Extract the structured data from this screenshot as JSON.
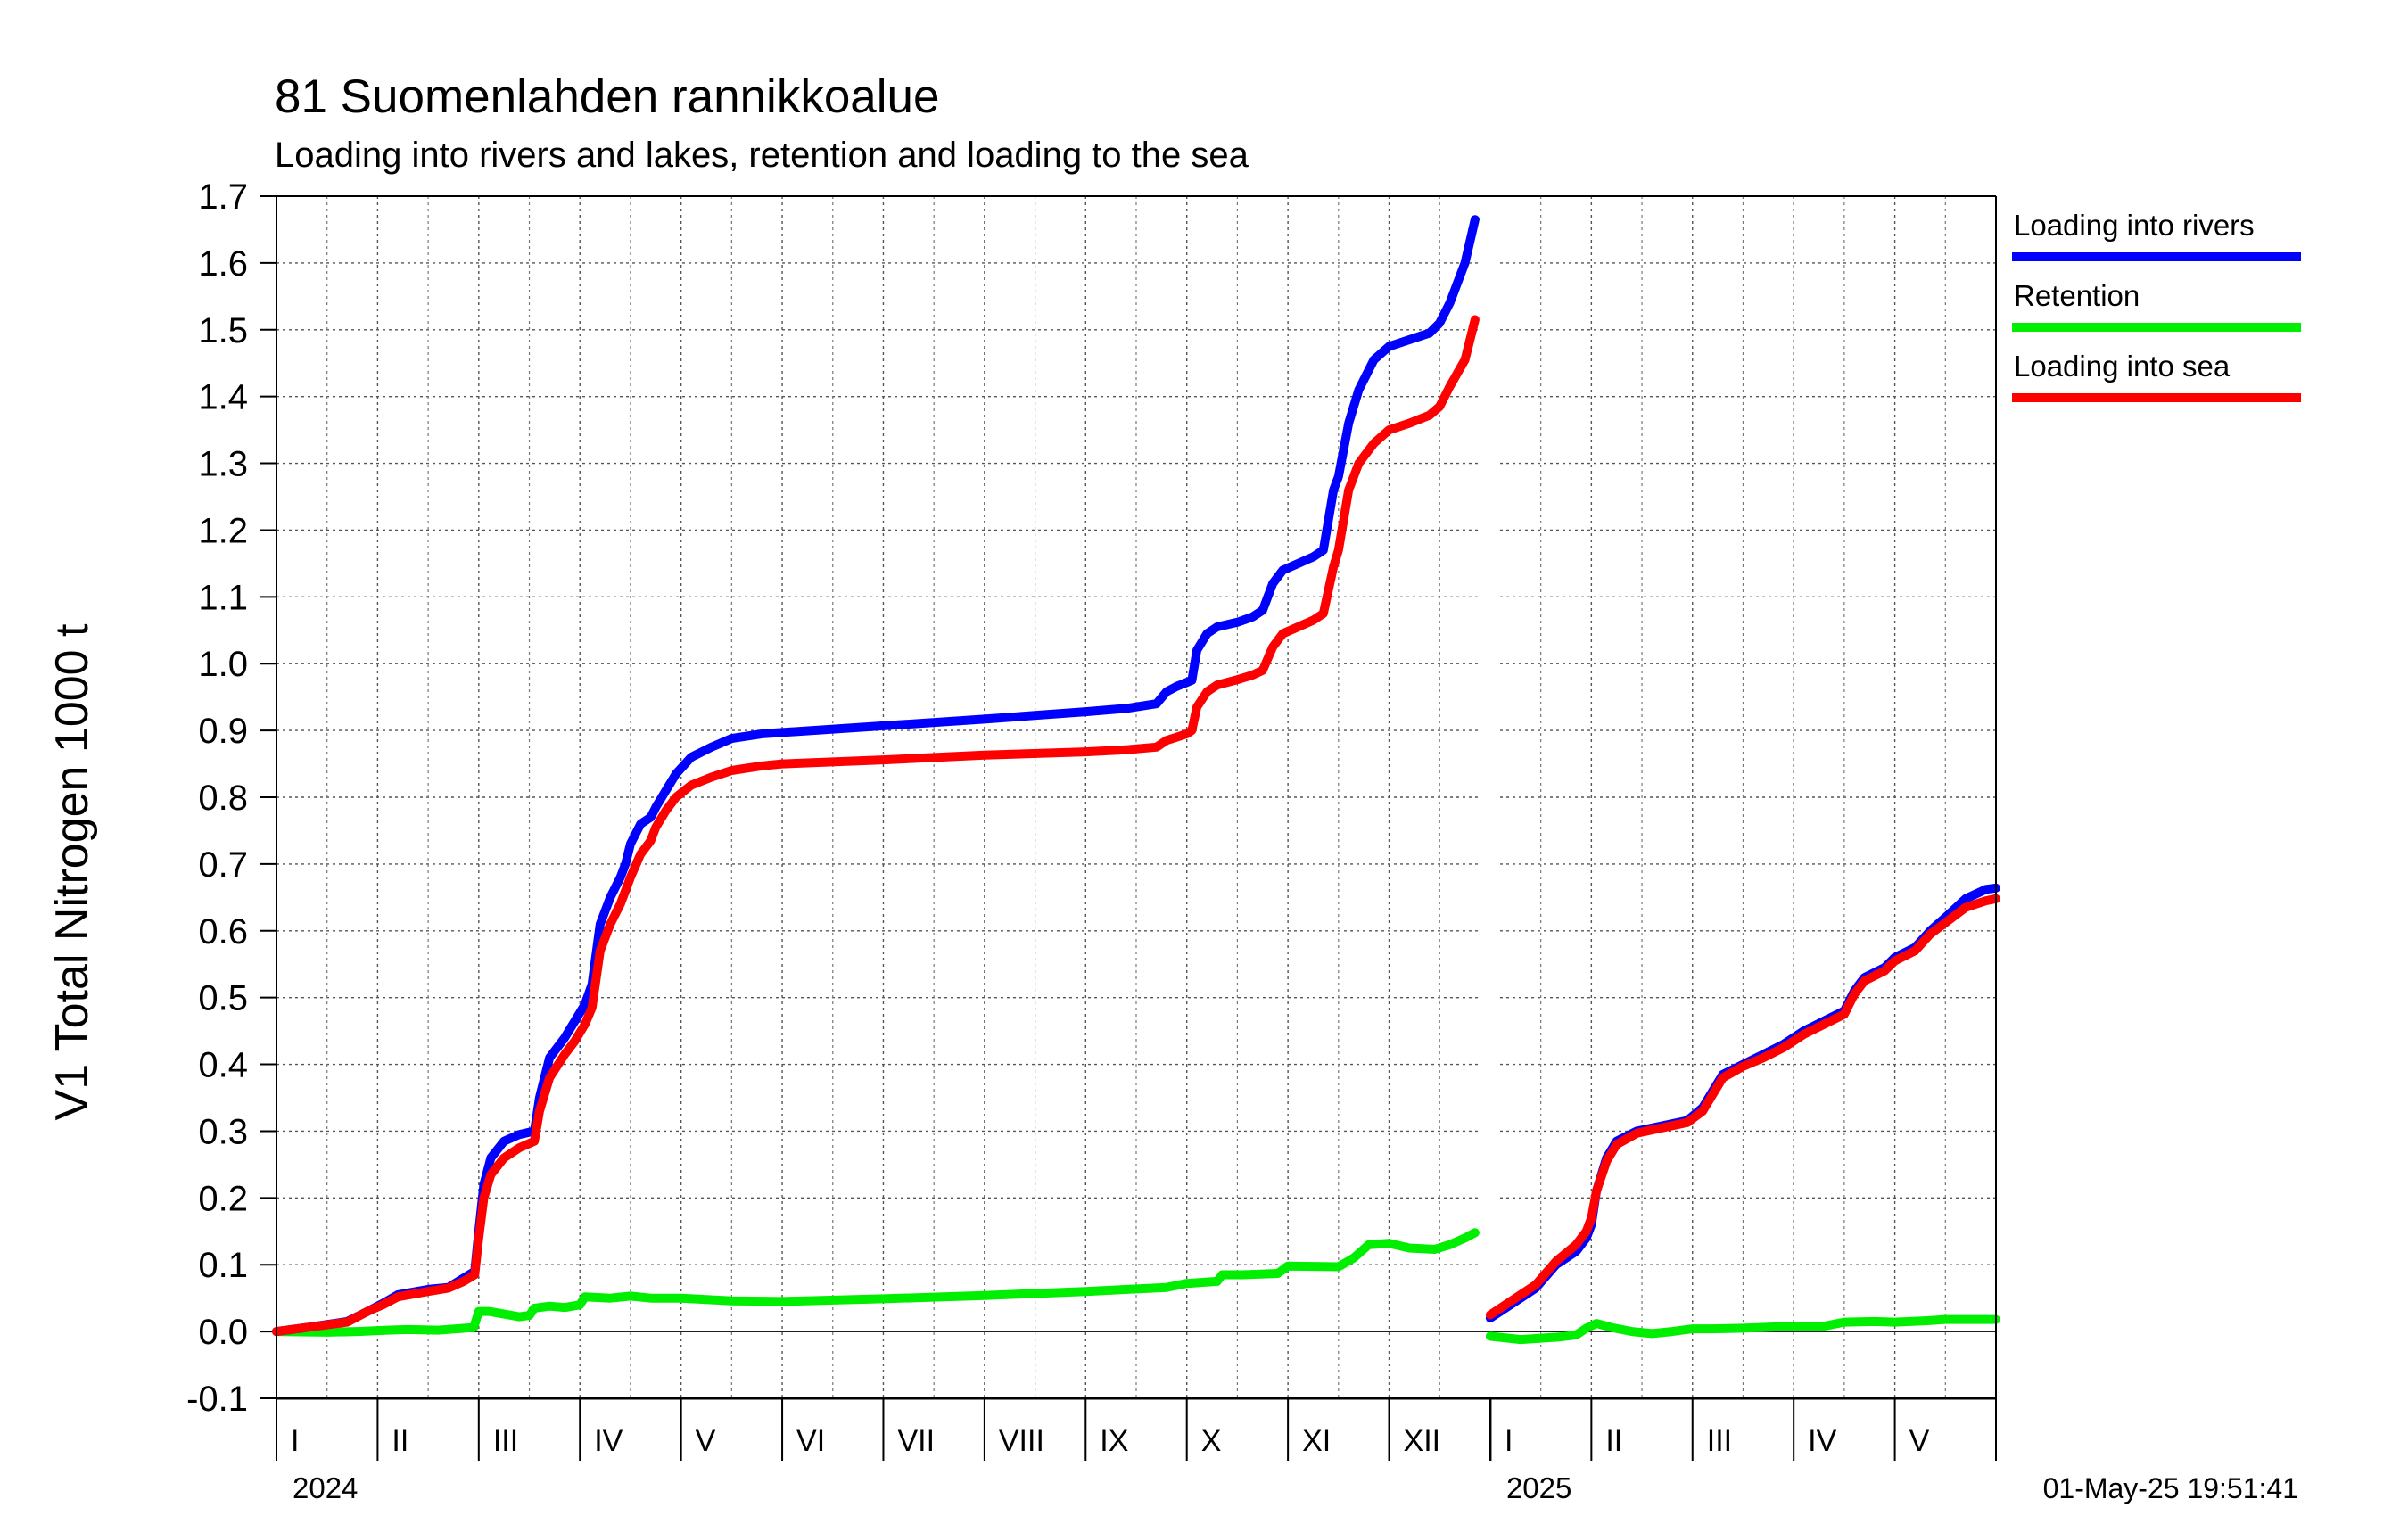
{
  "title": "81 Suomenlahden rannikkoalue",
  "subtitle": "Loading into rivers and lakes, retention and loading to the sea",
  "timestamp": "01-May-25 19:51:41",
  "colors": {
    "rivers": "#0000ff",
    "retention": "#00ee00",
    "sea": "#ff0000"
  },
  "chart_data": {
    "type": "line",
    "ylabel": "V1 Total Nitrogen 1000 t",
    "ylim": [
      -0.1,
      1.7
    ],
    "yticks": [
      "-0.1",
      "0.0",
      "0.1",
      "0.2",
      "0.3",
      "0.4",
      "0.5",
      "0.6",
      "0.7",
      "0.8",
      "0.9",
      "1.0",
      "1.1",
      "1.2",
      "1.3",
      "1.4",
      "1.5",
      "1.6",
      "1.7"
    ],
    "xlim": [
      0,
      17
    ],
    "x_unit": "month index (0 = start of Jan 2024)",
    "grid": true,
    "legend_position": "top-right",
    "months": [
      "I",
      "II",
      "III",
      "IV",
      "V",
      "VI",
      "VII",
      "VIII",
      "IX",
      "X",
      "XI",
      "XII",
      "I",
      "II",
      "III",
      "IV",
      "V"
    ],
    "years": [
      {
        "label": "2024",
        "at_month": 0
      },
      {
        "label": "2025",
        "at_month": 12
      }
    ],
    "series": [
      {
        "name": "Loading into rivers",
        "color_key": "rivers",
        "segments": [
          [
            [
              0,
              0.0
            ],
            [
              0.3,
              0.006
            ],
            [
              0.7,
              0.015
            ],
            [
              0.9,
              0.03
            ],
            [
              1.05,
              0.042
            ],
            [
              1.2,
              0.055
            ],
            [
              1.5,
              0.063
            ],
            [
              1.7,
              0.066
            ],
            [
              1.85,
              0.08
            ],
            [
              1.96,
              0.09
            ],
            [
              2.0,
              0.15
            ],
            [
              2.05,
              0.22
            ],
            [
              2.12,
              0.26
            ],
            [
              2.25,
              0.285
            ],
            [
              2.4,
              0.295
            ],
            [
              2.55,
              0.3
            ],
            [
              2.6,
              0.35
            ],
            [
              2.7,
              0.41
            ],
            [
              2.85,
              0.44
            ],
            [
              2.95,
              0.465
            ],
            [
              3.05,
              0.49
            ],
            [
              3.12,
              0.52
            ],
            [
              3.2,
              0.61
            ],
            [
              3.3,
              0.65
            ],
            [
              3.4,
              0.68
            ],
            [
              3.45,
              0.7
            ],
            [
              3.5,
              0.73
            ],
            [
              3.6,
              0.76
            ],
            [
              3.7,
              0.77
            ],
            [
              3.75,
              0.785
            ],
            [
              3.85,
              0.81
            ],
            [
              3.95,
              0.835
            ],
            [
              4.1,
              0.86
            ],
            [
              4.3,
              0.875
            ],
            [
              4.5,
              0.888
            ],
            [
              4.8,
              0.895
            ],
            [
              5.0,
              0.897
            ],
            [
              6.0,
              0.907
            ],
            [
              7.0,
              0.917
            ],
            [
              8.0,
              0.928
            ],
            [
              8.4,
              0.933
            ],
            [
              8.7,
              0.94
            ],
            [
              8.8,
              0.958
            ],
            [
              8.9,
              0.966
            ],
            [
              9.0,
              0.972
            ],
            [
              9.05,
              0.975
            ],
            [
              9.1,
              1.02
            ],
            [
              9.2,
              1.045
            ],
            [
              9.3,
              1.055
            ],
            [
              9.5,
              1.062
            ],
            [
              9.65,
              1.07
            ],
            [
              9.75,
              1.08
            ],
            [
              9.85,
              1.12
            ],
            [
              9.95,
              1.14
            ],
            [
              10.1,
              1.15
            ],
            [
              10.25,
              1.16
            ],
            [
              10.35,
              1.17
            ],
            [
              10.45,
              1.26
            ],
            [
              10.5,
              1.28
            ],
            [
              10.6,
              1.36
            ],
            [
              10.7,
              1.41
            ],
            [
              10.85,
              1.455
            ],
            [
              11.0,
              1.475
            ],
            [
              11.2,
              1.485
            ],
            [
              11.4,
              1.495
            ],
            [
              11.5,
              1.51
            ],
            [
              11.6,
              1.54
            ],
            [
              11.75,
              1.6
            ],
            [
              11.85,
              1.665
            ]
          ],
          [
            [
              12.0,
              0.02
            ],
            [
              12.2,
              0.04
            ],
            [
              12.45,
              0.065
            ],
            [
              12.65,
              0.1
            ],
            [
              12.85,
              0.12
            ],
            [
              12.95,
              0.14
            ],
            [
              13.0,
              0.16
            ],
            [
              13.05,
              0.21
            ],
            [
              13.15,
              0.26
            ],
            [
              13.25,
              0.285
            ],
            [
              13.45,
              0.3
            ],
            [
              13.7,
              0.308
            ],
            [
              13.95,
              0.316
            ],
            [
              14.1,
              0.335
            ],
            [
              14.2,
              0.36
            ],
            [
              14.3,
              0.385
            ],
            [
              14.5,
              0.4
            ],
            [
              14.7,
              0.415
            ],
            [
              14.9,
              0.43
            ],
            [
              15.1,
              0.45
            ],
            [
              15.3,
              0.465
            ],
            [
              15.5,
              0.48
            ],
            [
              15.6,
              0.51
            ],
            [
              15.7,
              0.53
            ],
            [
              15.9,
              0.545
            ],
            [
              16.0,
              0.56
            ],
            [
              16.2,
              0.575
            ],
            [
              16.35,
              0.6
            ],
            [
              16.5,
              0.62
            ],
            [
              16.7,
              0.648
            ],
            [
              16.9,
              0.662
            ],
            [
              17.0,
              0.664
            ]
          ]
        ]
      },
      {
        "name": "Retention",
        "color_key": "retention",
        "segments": [
          [
            [
              0,
              0.0
            ],
            [
              0.5,
              -0.001
            ],
            [
              0.8,
              0.0
            ],
            [
              1.1,
              0.002
            ],
            [
              1.3,
              0.003
            ],
            [
              1.6,
              0.002
            ],
            [
              1.95,
              0.006
            ],
            [
              2.0,
              0.03
            ],
            [
              2.1,
              0.03
            ],
            [
              2.4,
              0.022
            ],
            [
              2.5,
              0.024
            ],
            [
              2.55,
              0.035
            ],
            [
              2.7,
              0.038
            ],
            [
              2.85,
              0.036
            ],
            [
              3.0,
              0.04
            ],
            [
              3.05,
              0.052
            ],
            [
              3.3,
              0.05
            ],
            [
              3.5,
              0.053
            ],
            [
              3.7,
              0.05
            ],
            [
              4.0,
              0.05
            ],
            [
              4.5,
              0.046
            ],
            [
              5.0,
              0.045
            ],
            [
              6.0,
              0.049
            ],
            [
              7.0,
              0.054
            ],
            [
              8.0,
              0.06
            ],
            [
              8.8,
              0.066
            ],
            [
              9.0,
              0.072
            ],
            [
              9.3,
              0.075
            ],
            [
              9.35,
              0.085
            ],
            [
              9.55,
              0.085
            ],
            [
              9.9,
              0.087
            ],
            [
              10.0,
              0.098
            ],
            [
              10.5,
              0.097
            ],
            [
              10.65,
              0.11
            ],
            [
              10.8,
              0.13
            ],
            [
              11.0,
              0.132
            ],
            [
              11.2,
              0.125
            ],
            [
              11.45,
              0.123
            ],
            [
              11.6,
              0.13
            ],
            [
              11.75,
              0.14
            ],
            [
              11.85,
              0.148
            ]
          ],
          [
            [
              12.0,
              -0.007
            ],
            [
              12.3,
              -0.012
            ],
            [
              12.5,
              -0.01
            ],
            [
              12.7,
              -0.008
            ],
            [
              12.85,
              -0.005
            ],
            [
              12.95,
              0.005
            ],
            [
              13.05,
              0.012
            ],
            [
              13.2,
              0.006
            ],
            [
              13.4,
              0.0
            ],
            [
              13.6,
              -0.003
            ],
            [
              13.8,
              0.0
            ],
            [
              14.0,
              0.004
            ],
            [
              14.2,
              0.004
            ],
            [
              14.5,
              0.005
            ],
            [
              15.0,
              0.008
            ],
            [
              15.3,
              0.008
            ],
            [
              15.5,
              0.014
            ],
            [
              15.8,
              0.015
            ],
            [
              16.0,
              0.014
            ],
            [
              16.3,
              0.016
            ],
            [
              16.5,
              0.018
            ],
            [
              17.0,
              0.018
            ]
          ]
        ]
      },
      {
        "name": "Loading into sea",
        "color_key": "sea",
        "segments": [
          [
            [
              0,
              0.0
            ],
            [
              0.3,
              0.006
            ],
            [
              0.7,
              0.014
            ],
            [
              0.9,
              0.03
            ],
            [
              1.05,
              0.04
            ],
            [
              1.2,
              0.052
            ],
            [
              1.5,
              0.06
            ],
            [
              1.7,
              0.065
            ],
            [
              1.85,
              0.075
            ],
            [
              1.96,
              0.085
            ],
            [
              2.0,
              0.14
            ],
            [
              2.05,
              0.2
            ],
            [
              2.12,
              0.235
            ],
            [
              2.25,
              0.26
            ],
            [
              2.4,
              0.275
            ],
            [
              2.55,
              0.285
            ],
            [
              2.6,
              0.33
            ],
            [
              2.7,
              0.38
            ],
            [
              2.85,
              0.415
            ],
            [
              2.95,
              0.435
            ],
            [
              3.05,
              0.46
            ],
            [
              3.12,
              0.485
            ],
            [
              3.2,
              0.57
            ],
            [
              3.3,
              0.61
            ],
            [
              3.4,
              0.64
            ],
            [
              3.45,
              0.66
            ],
            [
              3.5,
              0.68
            ],
            [
              3.6,
              0.715
            ],
            [
              3.7,
              0.735
            ],
            [
              3.75,
              0.755
            ],
            [
              3.85,
              0.78
            ],
            [
              3.95,
              0.8
            ],
            [
              4.1,
              0.818
            ],
            [
              4.3,
              0.83
            ],
            [
              4.5,
              0.84
            ],
            [
              4.8,
              0.847
            ],
            [
              5.0,
              0.85
            ],
            [
              6.0,
              0.856
            ],
            [
              7.0,
              0.863
            ],
            [
              8.0,
              0.868
            ],
            [
              8.4,
              0.871
            ],
            [
              8.7,
              0.875
            ],
            [
              8.8,
              0.885
            ],
            [
              8.9,
              0.89
            ],
            [
              9.0,
              0.895
            ],
            [
              9.05,
              0.9
            ],
            [
              9.1,
              0.935
            ],
            [
              9.2,
              0.958
            ],
            [
              9.3,
              0.968
            ],
            [
              9.5,
              0.976
            ],
            [
              9.65,
              0.983
            ],
            [
              9.75,
              0.99
            ],
            [
              9.85,
              1.025
            ],
            [
              9.95,
              1.045
            ],
            [
              10.1,
              1.055
            ],
            [
              10.25,
              1.065
            ],
            [
              10.35,
              1.075
            ],
            [
              10.45,
              1.145
            ],
            [
              10.5,
              1.17
            ],
            [
              10.6,
              1.26
            ],
            [
              10.7,
              1.3
            ],
            [
              10.85,
              1.33
            ],
            [
              11.0,
              1.35
            ],
            [
              11.2,
              1.36
            ],
            [
              11.4,
              1.372
            ],
            [
              11.5,
              1.385
            ],
            [
              11.6,
              1.415
            ],
            [
              11.75,
              1.455
            ],
            [
              11.85,
              1.515
            ]
          ],
          [
            [
              12.0,
              0.025
            ],
            [
              12.2,
              0.045
            ],
            [
              12.45,
              0.07
            ],
            [
              12.65,
              0.105
            ],
            [
              12.85,
              0.13
            ],
            [
              12.95,
              0.15
            ],
            [
              13.0,
              0.17
            ],
            [
              13.05,
              0.21
            ],
            [
              13.15,
              0.255
            ],
            [
              13.25,
              0.28
            ],
            [
              13.45,
              0.297
            ],
            [
              13.7,
              0.305
            ],
            [
              13.95,
              0.313
            ],
            [
              14.1,
              0.33
            ],
            [
              14.2,
              0.355
            ],
            [
              14.3,
              0.38
            ],
            [
              14.5,
              0.397
            ],
            [
              14.7,
              0.41
            ],
            [
              14.9,
              0.425
            ],
            [
              15.1,
              0.445
            ],
            [
              15.3,
              0.46
            ],
            [
              15.5,
              0.475
            ],
            [
              15.6,
              0.505
            ],
            [
              15.7,
              0.525
            ],
            [
              15.9,
              0.54
            ],
            [
              16.0,
              0.555
            ],
            [
              16.2,
              0.57
            ],
            [
              16.35,
              0.595
            ],
            [
              16.5,
              0.612
            ],
            [
              16.7,
              0.635
            ],
            [
              16.9,
              0.645
            ],
            [
              17.0,
              0.648
            ]
          ]
        ]
      }
    ]
  }
}
